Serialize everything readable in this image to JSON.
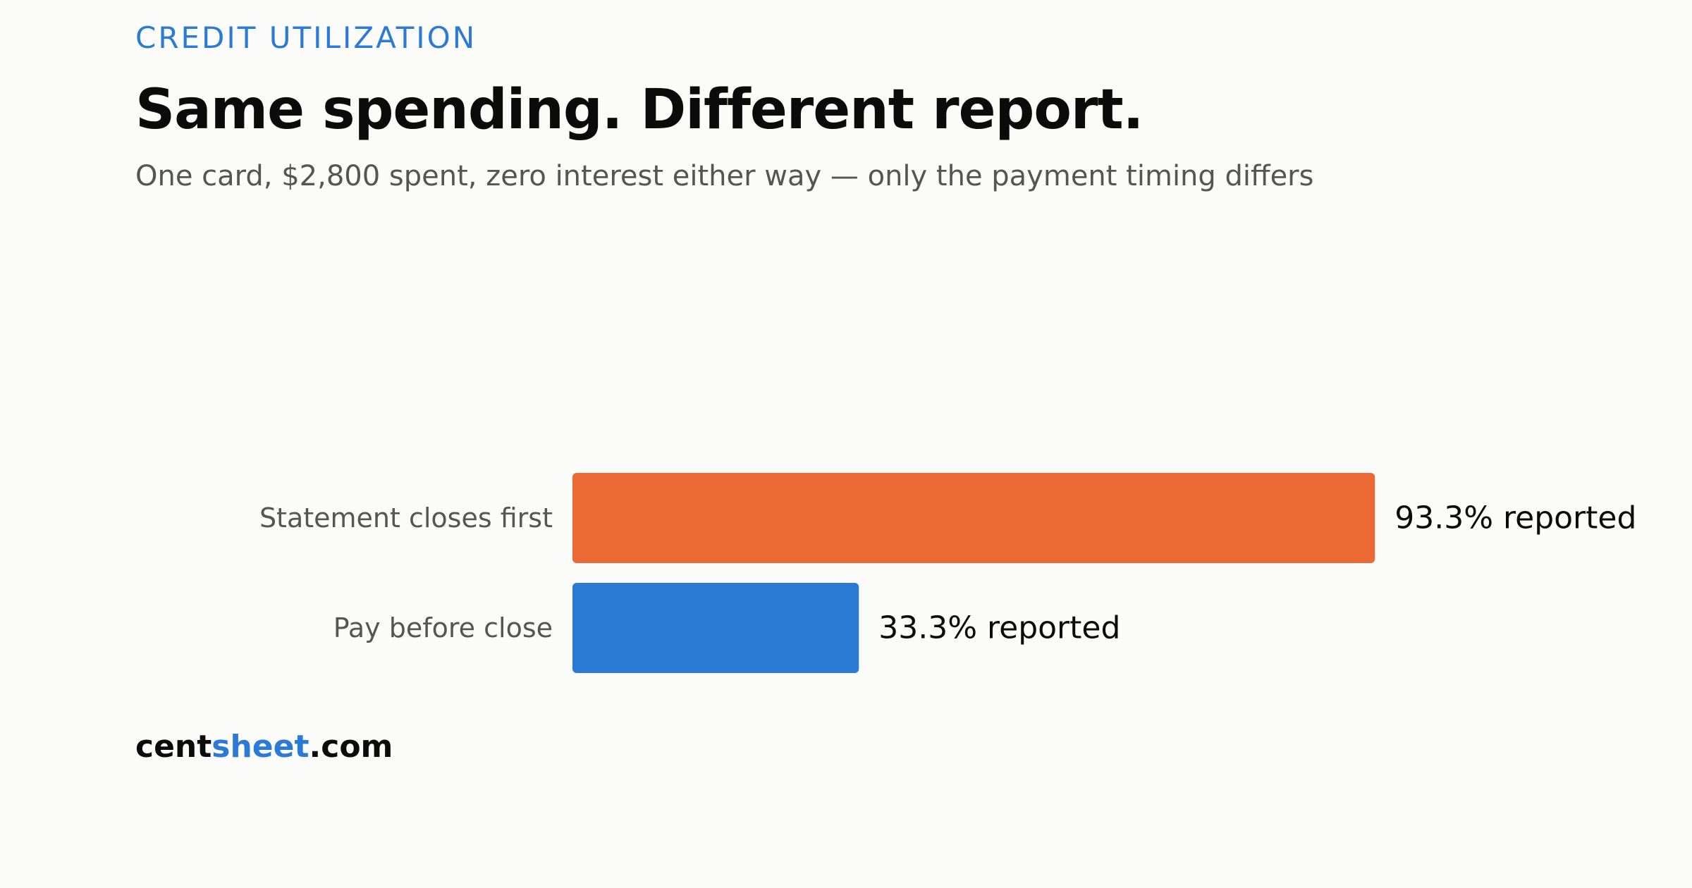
{
  "header": {
    "eyebrow": "CREDIT UTILIZATION",
    "title": "Same spending. Different report.",
    "subtitle": "One card, $2,800 spent, zero interest either way — only the payment timing differs"
  },
  "brand": {
    "part1": "cent",
    "part2": "sheet",
    "part3": ".com"
  },
  "colors": {
    "accent": "#2B7AD6",
    "bar_statement": "#EC6935",
    "bar_pay": "#2B7AD6",
    "label_text": "#555555",
    "value_text": "#0B0B0B"
  },
  "chart_data": {
    "type": "bar",
    "orientation": "horizontal",
    "categories": [
      "Statement closes first",
      "Pay before close"
    ],
    "values": [
      93.3,
      33.3
    ],
    "value_labels": [
      "93.3% reported",
      "33.3% reported"
    ],
    "grid": false,
    "legend": "none"
  }
}
